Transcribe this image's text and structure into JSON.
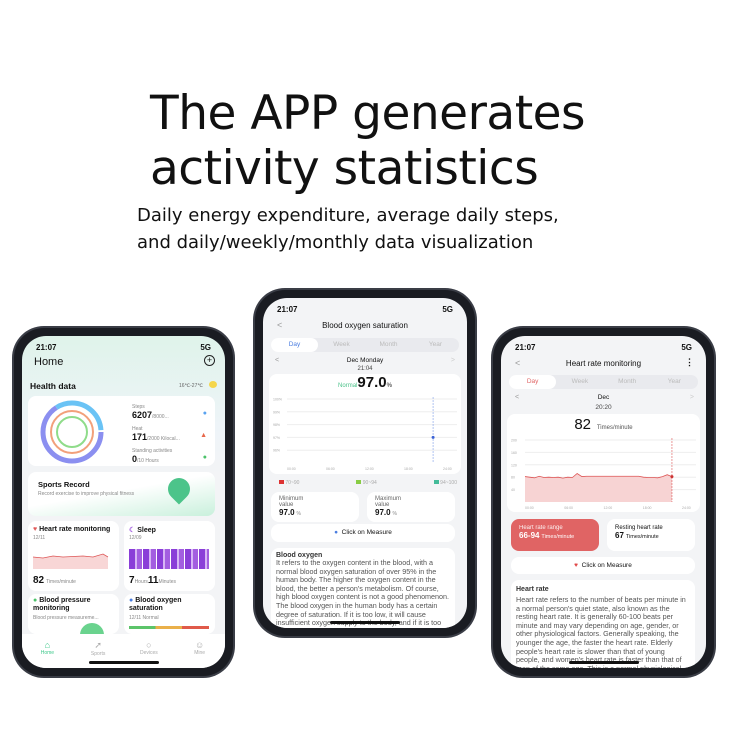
{
  "headline": {
    "line1": "The APP generates",
    "line2": "activity statistics",
    "sub1": "Daily energy expenditure, average daily steps,",
    "sub2": "and daily/weekly/monthly data visualization"
  },
  "phone_home": {
    "time": "21:07",
    "network": "5G",
    "title": "Home",
    "section": "Health data",
    "weather": "16℃-27℃",
    "steps_label": "Steps",
    "steps_value": "6207",
    "steps_goal": "/8000...",
    "heat_label": "Heat",
    "heat_value": "171",
    "heat_goal": "/2000 Kilocal...",
    "standing_label": "Standing activities",
    "standing_value": "0",
    "standing_goal": "/10 Hours",
    "sports_title": "Sports Record",
    "sports_sub": "Record exercise to improve physical fitness",
    "hr_title": "Heart rate monitoring",
    "hr_date": "12/11",
    "hr_value": "82",
    "hr_unit": "Times/minute",
    "sleep_title": "Sleep",
    "sleep_date": "12/09",
    "sleep_hours": "7",
    "sleep_h_unit": "Hours",
    "sleep_min": "11",
    "sleep_m_unit": "Minutes",
    "bp_title": "Blood pressure monitoring",
    "bp_sub": "Blood pressure measureme...",
    "bo_title": "Blood oxygen saturation",
    "bo_sub": "12/11 Normal",
    "nav": [
      "Home",
      "Sports",
      "Devices",
      "Mine"
    ],
    "accent": "#3cc88a"
  },
  "phone_oxygen": {
    "time": "21:07",
    "network": "5G",
    "title": "Blood oxygen saturation",
    "tabs": [
      "Day",
      "Week",
      "Month",
      "Year"
    ],
    "date": "Dec Monday",
    "reading_time": "21:04",
    "status": "Normal",
    "value": "97.0",
    "unit": "%",
    "y_ticks": [
      "100%",
      "99%",
      "98%",
      "97%",
      "96%"
    ],
    "x_ticks": [
      "00:00",
      "06:00",
      "12:00",
      "18:00",
      "24:00"
    ],
    "legend": [
      "70~90",
      "90~94",
      "94~100"
    ],
    "min_label": "Minimum value",
    "min_value": "97.0",
    "max_label": "Maximum value",
    "max_value": "97.0",
    "measure": "Click on Measure",
    "info_title": "Blood oxygen",
    "info_text": "It refers to the oxygen content in the blood, with a normal blood oxygen saturation of over 95% in the human body. The higher the oxygen content in the blood, the better a person's metabolism. Of course, high blood oxygen content is not a good phenomenon. The blood oxygen in the human body has a certain degree of saturation. If it is too low, it will cause insufficient oxygen supply to the body, and if it is too high, it will lead to cell aging in the body."
  },
  "phone_heart": {
    "time": "21:07",
    "network": "5G",
    "title": "Heart rate monitoring",
    "tabs": [
      "Day",
      "Week",
      "Month",
      "Year"
    ],
    "date": "Dec",
    "reading_time": "20:20",
    "value": "82",
    "unit": "Times/minute",
    "y_ticks": [
      "200",
      "160",
      "120",
      "80",
      "40"
    ],
    "x_ticks": [
      "00:00",
      "06:00",
      "12:00",
      "18:00",
      "24:00"
    ],
    "range_label": "Heart rate range",
    "range_value": "66-94",
    "range_unit": "Times/minute",
    "resting_label": "Resting heart rate",
    "resting_value": "67",
    "resting_unit": "Times/minute",
    "measure": "Click on Measure",
    "info_title": "Heart rate",
    "info_text": "Heart rate refers to the number of beats per minute in a normal person's quiet state, also known as the resting heart rate. It is generally 60-100 beats per minute and may vary depending on age, gender, or other physiological factors. Generally speaking, the younger the age, the faster the heart rate. Elderly people's heart rate is slower than that of young people, and women's heart rate is faster than that of men of the same age. This is a normal physiological phenomenon.",
    "accent": "#e06464"
  }
}
